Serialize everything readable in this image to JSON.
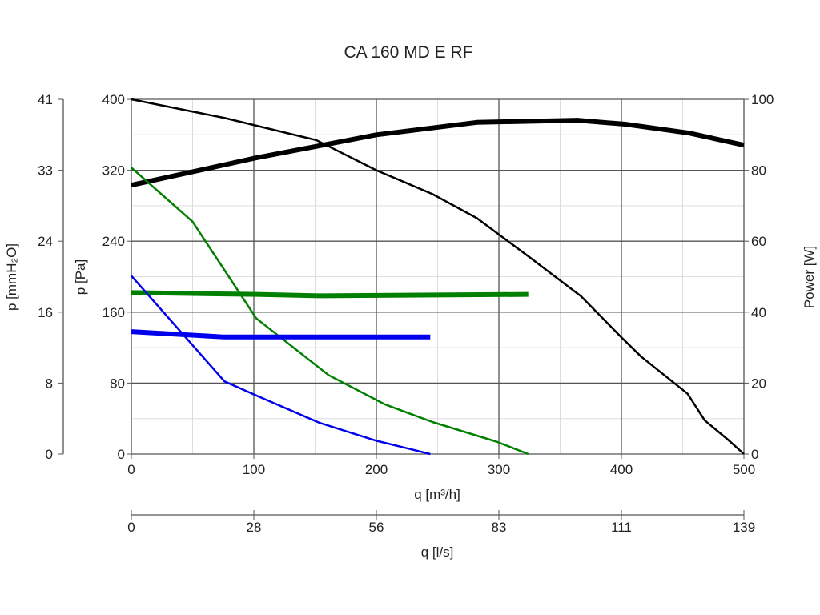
{
  "chart_data": {
    "type": "line",
    "title": "CA 160 MD E RF",
    "xlabel": "q [m³/h]",
    "xlabel2": "q [l/s]",
    "ylabel": "p [Pa]",
    "ylabel_left2": "p [mmH₂O]",
    "ylabel_right": "Power [W]",
    "xlim": [
      0,
      500
    ],
    "ylim": [
      0,
      400
    ],
    "ylim_right": [
      0,
      100
    ],
    "x_ticks": [
      "0",
      "100",
      "200",
      "300",
      "400",
      "500"
    ],
    "x2_ticks": [
      "0",
      "28",
      "56",
      "83",
      "111",
      "139"
    ],
    "y_ticks": [
      "0",
      "80",
      "160",
      "240",
      "320",
      "400"
    ],
    "y2_ticks": [
      "0",
      "8",
      "16",
      "24",
      "33",
      "41"
    ],
    "yr_ticks": [
      "0",
      "20",
      "40",
      "60",
      "80",
      "100"
    ],
    "grid": true,
    "series": [
      {
        "name": "pressure-max",
        "axis": "left",
        "color": "#000000",
        "width": 2.5,
        "points": [
          [
            0,
            400
          ],
          [
            76,
            379
          ],
          [
            151,
            354
          ],
          [
            200,
            320
          ],
          [
            246,
            293
          ],
          [
            282,
            266
          ],
          [
            324,
            223
          ],
          [
            367,
            178
          ],
          [
            399,
            133
          ],
          [
            416,
            110
          ],
          [
            454,
            68
          ],
          [
            468,
            38
          ],
          [
            488,
            15
          ],
          [
            500,
            0
          ]
        ]
      },
      {
        "name": "power-max",
        "axis": "right",
        "color": "#000000",
        "width": 6,
        "points": [
          [
            0,
            75.8
          ],
          [
            102,
            83.5
          ],
          [
            200,
            90
          ],
          [
            282,
            93.5
          ],
          [
            364,
            94.1
          ],
          [
            403,
            93
          ],
          [
            455,
            90.5
          ],
          [
            500,
            87.1
          ]
        ]
      },
      {
        "name": "pressure-mid",
        "axis": "left",
        "color": "#008000",
        "width": 2.5,
        "points": [
          [
            0,
            323
          ],
          [
            50,
            262
          ],
          [
            102,
            153
          ],
          [
            161,
            89
          ],
          [
            207,
            56
          ],
          [
            246,
            36
          ],
          [
            298,
            14
          ],
          [
            324,
            0
          ]
        ]
      },
      {
        "name": "power-mid",
        "axis": "right",
        "color": "#008000",
        "width": 6,
        "points": [
          [
            0,
            45.5
          ],
          [
            102,
            45
          ],
          [
            154,
            44.6
          ],
          [
            324,
            45
          ]
        ]
      },
      {
        "name": "pressure-low",
        "axis": "left",
        "color": "#0000ee",
        "width": 2.5,
        "points": [
          [
            0,
            201
          ],
          [
            76,
            82
          ],
          [
            102,
            66
          ],
          [
            154,
            35
          ],
          [
            200,
            15
          ],
          [
            244,
            0
          ]
        ]
      },
      {
        "name": "power-low",
        "axis": "right",
        "color": "#0000ee",
        "width": 6,
        "points": [
          [
            0,
            34.5
          ],
          [
            76,
            33
          ],
          [
            244,
            33
          ]
        ]
      }
    ]
  }
}
